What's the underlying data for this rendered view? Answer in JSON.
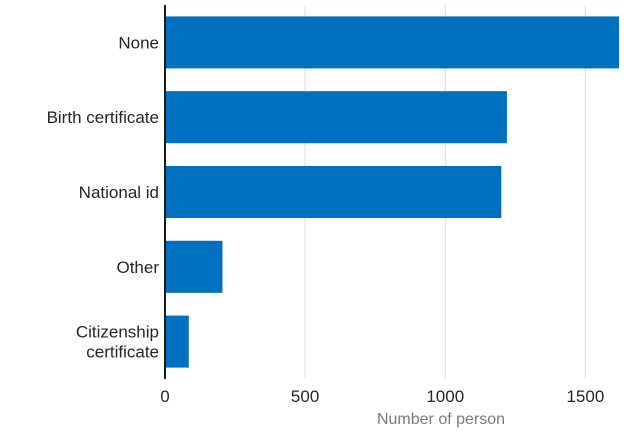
{
  "chart_data": {
    "type": "bar",
    "orientation": "horizontal",
    "categories": [
      [
        "None"
      ],
      [
        "Birth certificate"
      ],
      [
        "National id"
      ],
      [
        "Other"
      ],
      [
        "Citizenship",
        "certificate"
      ]
    ],
    "values": [
      1620,
      1220,
      1200,
      205,
      85
    ],
    "xlabel": "Number of person",
    "ylabel": "",
    "title": "",
    "xlim": [
      0,
      1620
    ],
    "xticks": [
      0,
      500,
      1000,
      1500
    ],
    "grid": "vertical",
    "bar_color": "#0070c0",
    "grid_color": "#d9d9d9",
    "axis_color": "#1a1a1a"
  }
}
